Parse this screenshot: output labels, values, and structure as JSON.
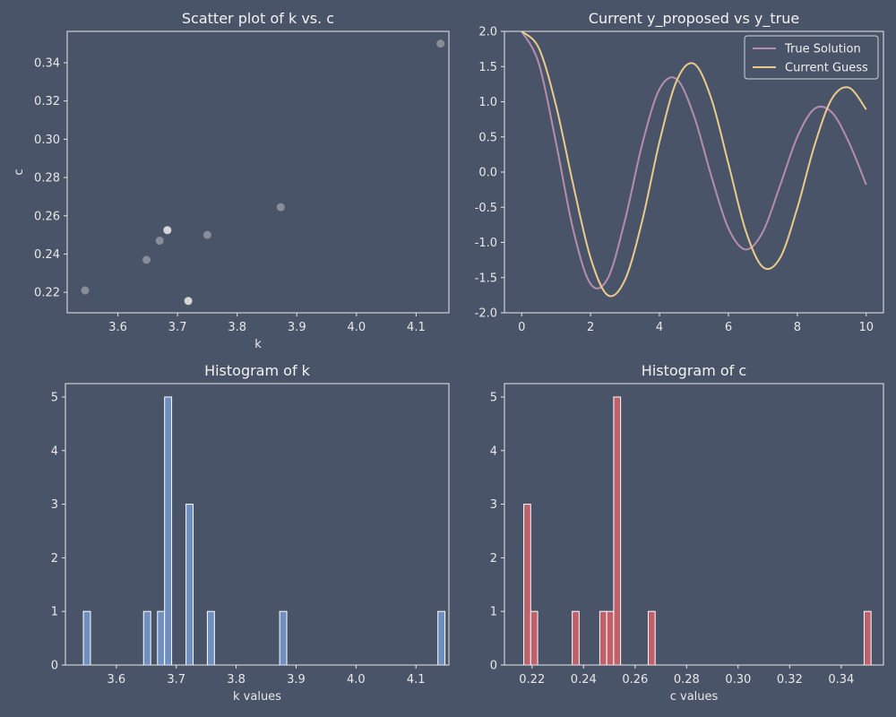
{
  "colors": {
    "background": "#4a5468",
    "axes_frame": "#e8e8e8",
    "scatter_point": "#9ca1aa",
    "scatter_point_highlight": "#dcdcdc",
    "true_solution": "#b48ead",
    "current_guess": "#ebcb8b",
    "hist_k": "#6e8fbf",
    "hist_c": "#bf616a",
    "bar_edge": "#ffffff"
  },
  "chart_data": [
    {
      "id": "scatter",
      "type": "scatter",
      "title": "Scatter plot of k vs. c",
      "xlabel": "k",
      "ylabel": "c",
      "xlim": [
        3.515,
        4.155
      ],
      "ylim": [
        0.2093,
        0.3564
      ],
      "xticks": [
        3.6,
        3.7,
        3.8,
        3.9,
        4.0,
        4.1
      ],
      "yticks": [
        0.22,
        0.24,
        0.26,
        0.28,
        0.3,
        0.32,
        0.34
      ],
      "grid": false,
      "points": [
        {
          "x": 3.545,
          "y": 0.221,
          "count": 1
        },
        {
          "x": 3.648,
          "y": 0.237,
          "count": 1
        },
        {
          "x": 3.67,
          "y": 0.247,
          "count": 1
        },
        {
          "x": 3.683,
          "y": 0.2525,
          "count": 5
        },
        {
          "x": 3.718,
          "y": 0.2155,
          "count": 3
        },
        {
          "x": 3.75,
          "y": 0.25,
          "count": 1
        },
        {
          "x": 3.873,
          "y": 0.2645,
          "count": 1
        },
        {
          "x": 4.141,
          "y": 0.35,
          "count": 1
        }
      ]
    },
    {
      "id": "lines",
      "type": "line",
      "title": "Current y_proposed vs y_true",
      "xlabel": "",
      "ylabel": "",
      "xlim": [
        -0.5,
        10.5
      ],
      "ylim": [
        -2.0,
        2.0
      ],
      "xticks": [
        0,
        2,
        4,
        6,
        8,
        10
      ],
      "yticks": [
        -2.0,
        -1.5,
        -1.0,
        -0.5,
        0.0,
        0.5,
        1.0,
        1.5,
        2.0
      ],
      "grid": false,
      "legend": {
        "placement": "upper-right",
        "entries": [
          "True Solution",
          "Current Guess"
        ]
      },
      "series": [
        {
          "name": "True Solution",
          "x": [
            0,
            0.5,
            1,
            1.5,
            2,
            2.5,
            3,
            3.5,
            4,
            4.5,
            5,
            5.5,
            6,
            6.5,
            7,
            7.5,
            8,
            8.5,
            9,
            9.5,
            10
          ],
          "y": [
            2.0,
            1.54,
            0.41,
            -0.83,
            -1.59,
            -1.51,
            -0.68,
            0.4,
            1.18,
            1.32,
            0.8,
            -0.05,
            -0.8,
            -1.1,
            -0.85,
            -0.19,
            0.5,
            0.9,
            0.85,
            0.42,
            -0.18
          ]
        },
        {
          "name": "Current Guess",
          "x": [
            0,
            0.5,
            1,
            1.5,
            2,
            2.5,
            3,
            3.5,
            4,
            4.5,
            5,
            5.5,
            6,
            6.5,
            7,
            7.5,
            8,
            8.5,
            9,
            9.5,
            10
          ],
          "y": [
            2.0,
            1.76,
            0.94,
            -0.19,
            -1.22,
            -1.75,
            -1.53,
            -0.69,
            0.43,
            1.3,
            1.54,
            1.05,
            0.12,
            -0.83,
            -1.35,
            -1.22,
            -0.51,
            0.38,
            1.04,
            1.2,
            0.89
          ]
        }
      ]
    },
    {
      "id": "hist_k",
      "type": "bar",
      "title": "Histogram of k",
      "xlabel": "k values",
      "ylabel": "",
      "xlim": [
        3.515,
        4.155
      ],
      "ylim": [
        0,
        5.25
      ],
      "xticks": [
        3.6,
        3.7,
        3.8,
        3.9,
        4.0,
        4.1
      ],
      "yticks": [
        0,
        1,
        2,
        3,
        4,
        5
      ],
      "bin_width": 0.0118,
      "grid": false,
      "bins": [
        {
          "x": 3.545,
          "value": 1
        },
        {
          "x": 3.6455,
          "value": 1
        },
        {
          "x": 3.6687,
          "value": 1
        },
        {
          "x": 3.6805,
          "value": 5
        },
        {
          "x": 3.7163,
          "value": 3
        },
        {
          "x": 3.7519,
          "value": 1
        },
        {
          "x": 3.8726,
          "value": 1
        },
        {
          "x": 4.1366,
          "value": 1
        }
      ]
    },
    {
      "id": "hist_c",
      "type": "bar",
      "title": "Histogram of c",
      "xlabel": "c values",
      "ylabel": "",
      "xlim": [
        0.2093,
        0.3564
      ],
      "ylim": [
        0,
        5.25
      ],
      "xticks": [
        0.22,
        0.24,
        0.26,
        0.28,
        0.3,
        0.32,
        0.34
      ],
      "yticks": [
        0,
        1,
        2,
        3,
        4,
        5
      ],
      "bin_width": 0.00268,
      "grid": false,
      "bins": [
        {
          "x": 0.2168,
          "value": 3
        },
        {
          "x": 0.2195,
          "value": 1
        },
        {
          "x": 0.2356,
          "value": 1
        },
        {
          "x": 0.2463,
          "value": 1
        },
        {
          "x": 0.249,
          "value": 1
        },
        {
          "x": 0.2517,
          "value": 5
        },
        {
          "x": 0.2651,
          "value": 1
        },
        {
          "x": 0.3489,
          "value": 1
        }
      ]
    }
  ]
}
